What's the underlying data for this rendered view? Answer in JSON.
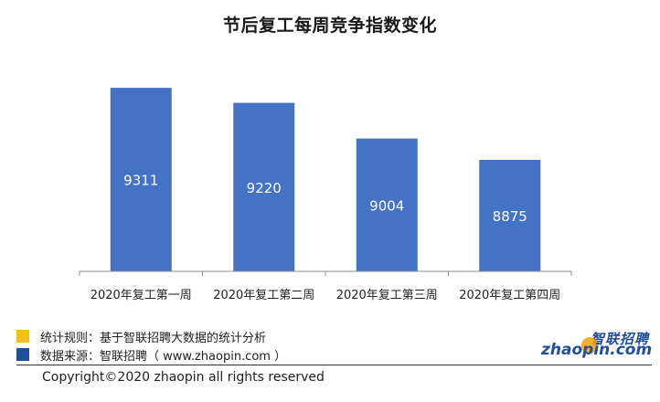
{
  "chart_data": {
    "type": "bar",
    "title": "节后复工每周竞争指数变化",
    "categories": [
      "2020年复工第一周",
      "2020年复工第二周",
      "2020年复工第三周",
      "2020年复工第四周"
    ],
    "values": [
      9311,
      9220,
      9004,
      8875
    ],
    "ylim": [
      8200,
      9400
    ],
    "bar_color": "#4472c4",
    "label_color": "#ffffff",
    "grid": false,
    "legend": "none"
  },
  "notes": {
    "rule_text": "统计规则：基于智联招聘大数据的统计分析",
    "source_text": "数据来源：智联招聘（ www.zhaopin.com ）"
  },
  "copyright": "Copyright©2020 zhaopin all rights reserved",
  "logo": {
    "brand_cn": "智联招聘",
    "brand_en": "zhaopin.com"
  },
  "colors": {
    "accent_yellow": "#f4c20d",
    "accent_blue": "#1f4e9c"
  }
}
